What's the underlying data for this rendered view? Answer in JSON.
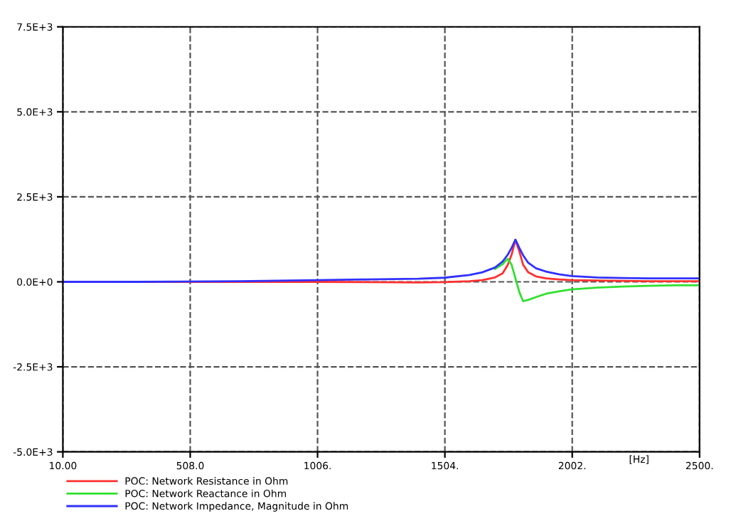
{
  "chart_data": {
    "type": "line",
    "xlabel": "[Hz]",
    "x": [
      10,
      300,
      700,
      1000,
      1200,
      1400,
      1500,
      1600,
      1650,
      1700,
      1730,
      1750,
      1765,
      1780,
      1795,
      1810,
      1830,
      1860,
      1900,
      1950,
      2000,
      2100,
      2200,
      2300,
      2400,
      2500
    ],
    "series": [
      {
        "name": "POC: Network Resistance in Ohm",
        "color": "#ff3030",
        "values": [
          0,
          0,
          0,
          0,
          -10,
          -20,
          -10,
          20,
          50,
          130,
          250,
          500,
          800,
          1230,
          900,
          500,
          280,
          160,
          100,
          70,
          50,
          40,
          30,
          20,
          20,
          20
        ]
      },
      {
        "name": "POC: Network Reactance in Ohm",
        "color": "#30e030",
        "values": [
          null,
          null,
          null,
          null,
          null,
          null,
          null,
          null,
          null,
          380,
          520,
          680,
          500,
          100,
          -300,
          -570,
          -530,
          -450,
          -350,
          -280,
          -220,
          -170,
          -140,
          -120,
          -100,
          -100
        ]
      },
      {
        "name": "POC: Network Impedance, Magnitude in Ohm",
        "color": "#3030ff",
        "values": [
          0,
          0,
          20,
          50,
          70,
          90,
          120,
          200,
          280,
          420,
          600,
          800,
          1000,
          1240,
          1000,
          780,
          560,
          400,
          300,
          220,
          170,
          130,
          110,
          100,
          100,
          100
        ]
      }
    ],
    "xlim": [
      10,
      2500
    ],
    "xticks": [
      {
        "value": 10,
        "label": "10.00"
      },
      {
        "value": 508,
        "label": "508.0"
      },
      {
        "value": 1006,
        "label": "1006."
      },
      {
        "value": 1504,
        "label": "1504."
      },
      {
        "value": 2002,
        "label": "2002."
      },
      {
        "value": 2500,
        "label": "2500."
      }
    ],
    "ylim": [
      -5000,
      7500
    ],
    "yticks": [
      {
        "value": 7500,
        "label": "7.5E+3"
      },
      {
        "value": 5000,
        "label": "5.0E+3"
      },
      {
        "value": 2500,
        "label": "2.5E+3"
      },
      {
        "value": 0,
        "label": "0.0E+0"
      },
      {
        "value": -2500,
        "label": "-2.5E+3"
      },
      {
        "value": -5000,
        "label": "-5.0E+3"
      }
    ],
    "grid": true,
    "legend": "bottom",
    "marker": "none",
    "line_style": "solid"
  }
}
